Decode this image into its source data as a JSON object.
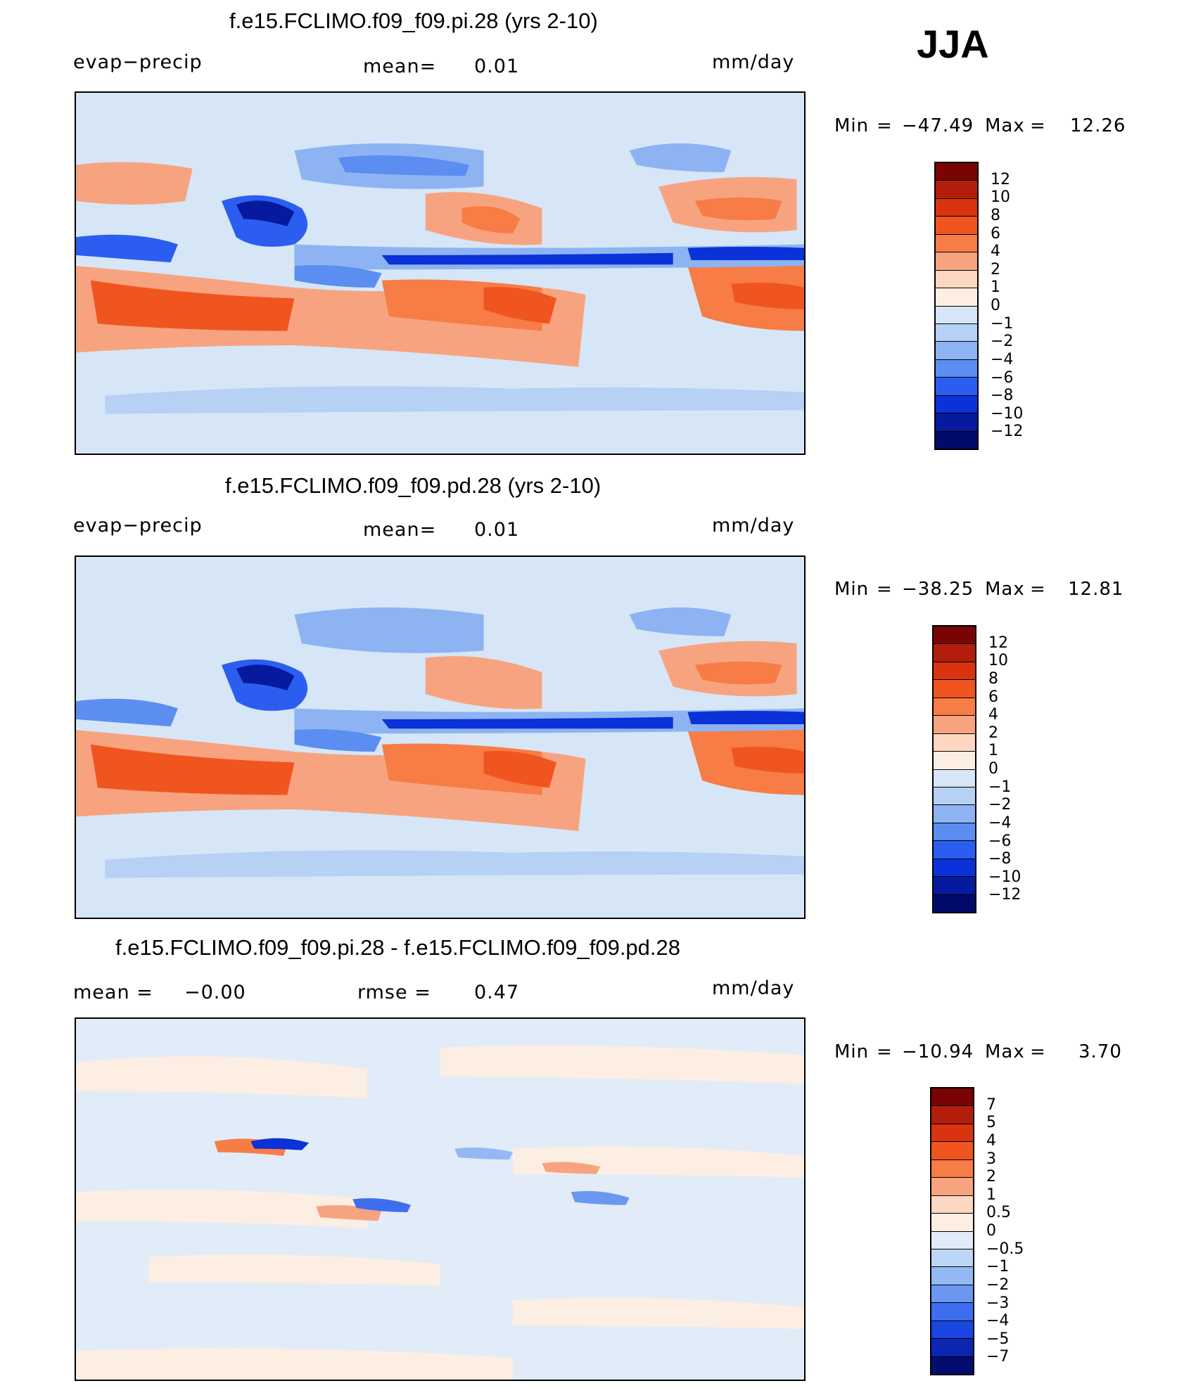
{
  "season": "JJA",
  "panels": [
    {
      "title": "f.e15.FCLIMO.f09_f09.pi.28 (yrs 2-10)",
      "left_label": "evap−precip",
      "center_label": "mean=",
      "center_value": "0.01",
      "right_label": "mm/day",
      "min_label": "Min",
      "min_value": "−47.49",
      "max_label": "Max",
      "max_value": "12.26",
      "levels": [
        "12",
        "10",
        "8",
        "6",
        "4",
        "2",
        "1",
        "0",
        "−1",
        "−2",
        "−4",
        "−6",
        "−8",
        "−10",
        "−12"
      ]
    },
    {
      "title": "f.e15.FCLIMO.f09_f09.pd.28 (yrs 2-10)",
      "left_label": "evap−precip",
      "center_label": "mean=",
      "center_value": "0.01",
      "right_label": "mm/day",
      "min_label": "Min",
      "min_value": "−38.25",
      "max_label": "Max",
      "max_value": "12.81",
      "levels": [
        "12",
        "10",
        "8",
        "6",
        "4",
        "2",
        "1",
        "0",
        "−1",
        "−2",
        "−4",
        "−6",
        "−8",
        "−10",
        "−12"
      ]
    },
    {
      "title": "f.e15.FCLIMO.f09_f09.pi.28 - f.e15.FCLIMO.f09_f09.pd.28",
      "left_label": "mean  =",
      "left_value": "−0.00",
      "center_label": "rmse  =",
      "center_value": "0.47",
      "right_label": "mm/day",
      "min_label": "Min",
      "min_value": "−10.94",
      "max_label": "Max",
      "max_value": "3.70",
      "levels": [
        "7",
        "5",
        "4",
        "3",
        "2",
        "1",
        "0.5",
        "0",
        "−0.5",
        "−1",
        "−2",
        "−3",
        "−4",
        "−5",
        "−7"
      ]
    }
  ],
  "colors": {
    "main_scale": [
      "#7a0403",
      "#b21e0b",
      "#d9340f",
      "#f0541f",
      "#f77c45",
      "#f8a380",
      "#fdd7c2",
      "#fdeee3",
      "#d6e6f7",
      "#b7d1f5",
      "#8db3f2",
      "#5c8df0",
      "#2b5ef0",
      "#0a32d8",
      "#051a9c",
      "#020a6a"
    ],
    "diff_scale": [
      "#7a0403",
      "#b21e0b",
      "#d9340f",
      "#f0541f",
      "#f77c45",
      "#f8a380",
      "#fdd7c2",
      "#fdeee3",
      "#e2ecf8",
      "#bed6f6",
      "#94b8f3",
      "#6b97f1",
      "#3e6ef0",
      "#1a45e0",
      "#0b26b0",
      "#030d70"
    ]
  }
}
